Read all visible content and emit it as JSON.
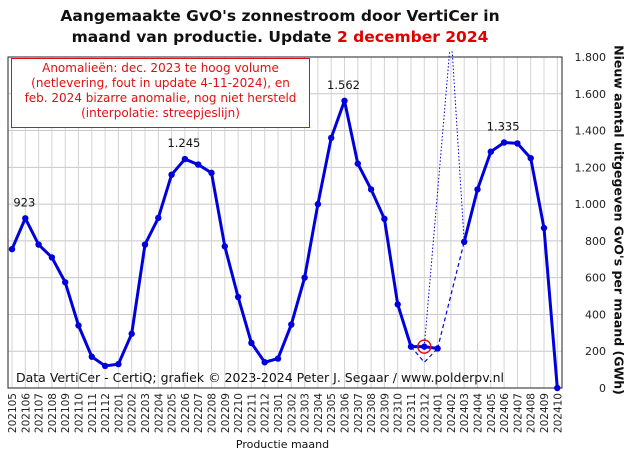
{
  "title_line1": "Aangemaakte GvO's zonnestroom door VertiCer in",
  "title_line2_black": "maand van productie. Update ",
  "title_line2_red": "2 december 2024",
  "annotation_lines": [
    "Anomalieën: dec. 2023 te hoog volume",
    "(netlevering, fout in update 4-11-2024), en",
    "feb. 2024 bizarre anomalie, nog niet hersteld",
    "(interpolatie: streepjeslijn)"
  ],
  "credit": "Data VertiCer - CertiQ; grafiek © 2023-2024  Peter J. Segaar / www.polderpv.nl",
  "chart_data": {
    "type": "line",
    "title": "Aangemaakte GvO's zonnestroom door VertiCer in maand van productie. Update 2 december 2024",
    "xlabel": "Productie maand",
    "ylabel": "Nieuw aantal uitgegeven GvO's per maand (GWh)",
    "ylim": [
      0,
      1800
    ],
    "ytick_labels": [
      "0",
      "200",
      "400",
      "600",
      "800",
      "1.000",
      "1.200",
      "1.400",
      "1.600",
      "1.800"
    ],
    "yticks": [
      0,
      200,
      400,
      600,
      800,
      1000,
      1200,
      1400,
      1600,
      1800
    ],
    "y_axis_side": "right",
    "grid": true,
    "categories": [
      "202105",
      "202106",
      "202107",
      "202108",
      "202109",
      "202110",
      "202111",
      "202112",
      "202201",
      "202202",
      "202203",
      "202204",
      "202205",
      "202206",
      "202207",
      "202208",
      "202209",
      "202210",
      "202211",
      "202212",
      "202301",
      "202302",
      "202303",
      "202304",
      "202305",
      "202306",
      "202307",
      "202308",
      "202309",
      "202310",
      "202311",
      "202312",
      "202401",
      "202402",
      "202403",
      "202404",
      "202405",
      "202406",
      "202407",
      "202408",
      "202409",
      "202410"
    ],
    "series": [
      {
        "values": [
          755,
          923,
          780,
          710,
          575,
          340,
          170,
          120,
          130,
          295,
          780,
          925,
          1160,
          1245,
          1215,
          1170,
          770,
          495,
          245,
          140,
          160,
          345,
          600,
          1000,
          1360,
          1562,
          1220,
          1080,
          920,
          455,
          225,
          225,
          215,
          null,
          795,
          1080,
          1285,
          1335,
          1330,
          1250,
          870,
          0
        ],
        "color": "#0000dd"
      }
    ],
    "interpolated_segment": {
      "from": "202401",
      "to": "202403",
      "values": [
        215,
        795
      ]
    },
    "anomaly_segment": {
      "from": "202312",
      "peak_above_axis": true,
      "style": "dotted"
    },
    "error_point": {
      "category": "202312",
      "value": 225,
      "interpolated_value": 140
    },
    "peak_labels": [
      {
        "category": "202106",
        "text": "923"
      },
      {
        "category": "202206",
        "text": "1.245"
      },
      {
        "category": "202306",
        "text": "1.562"
      },
      {
        "category": "202406",
        "text": "1.335"
      }
    ]
  }
}
